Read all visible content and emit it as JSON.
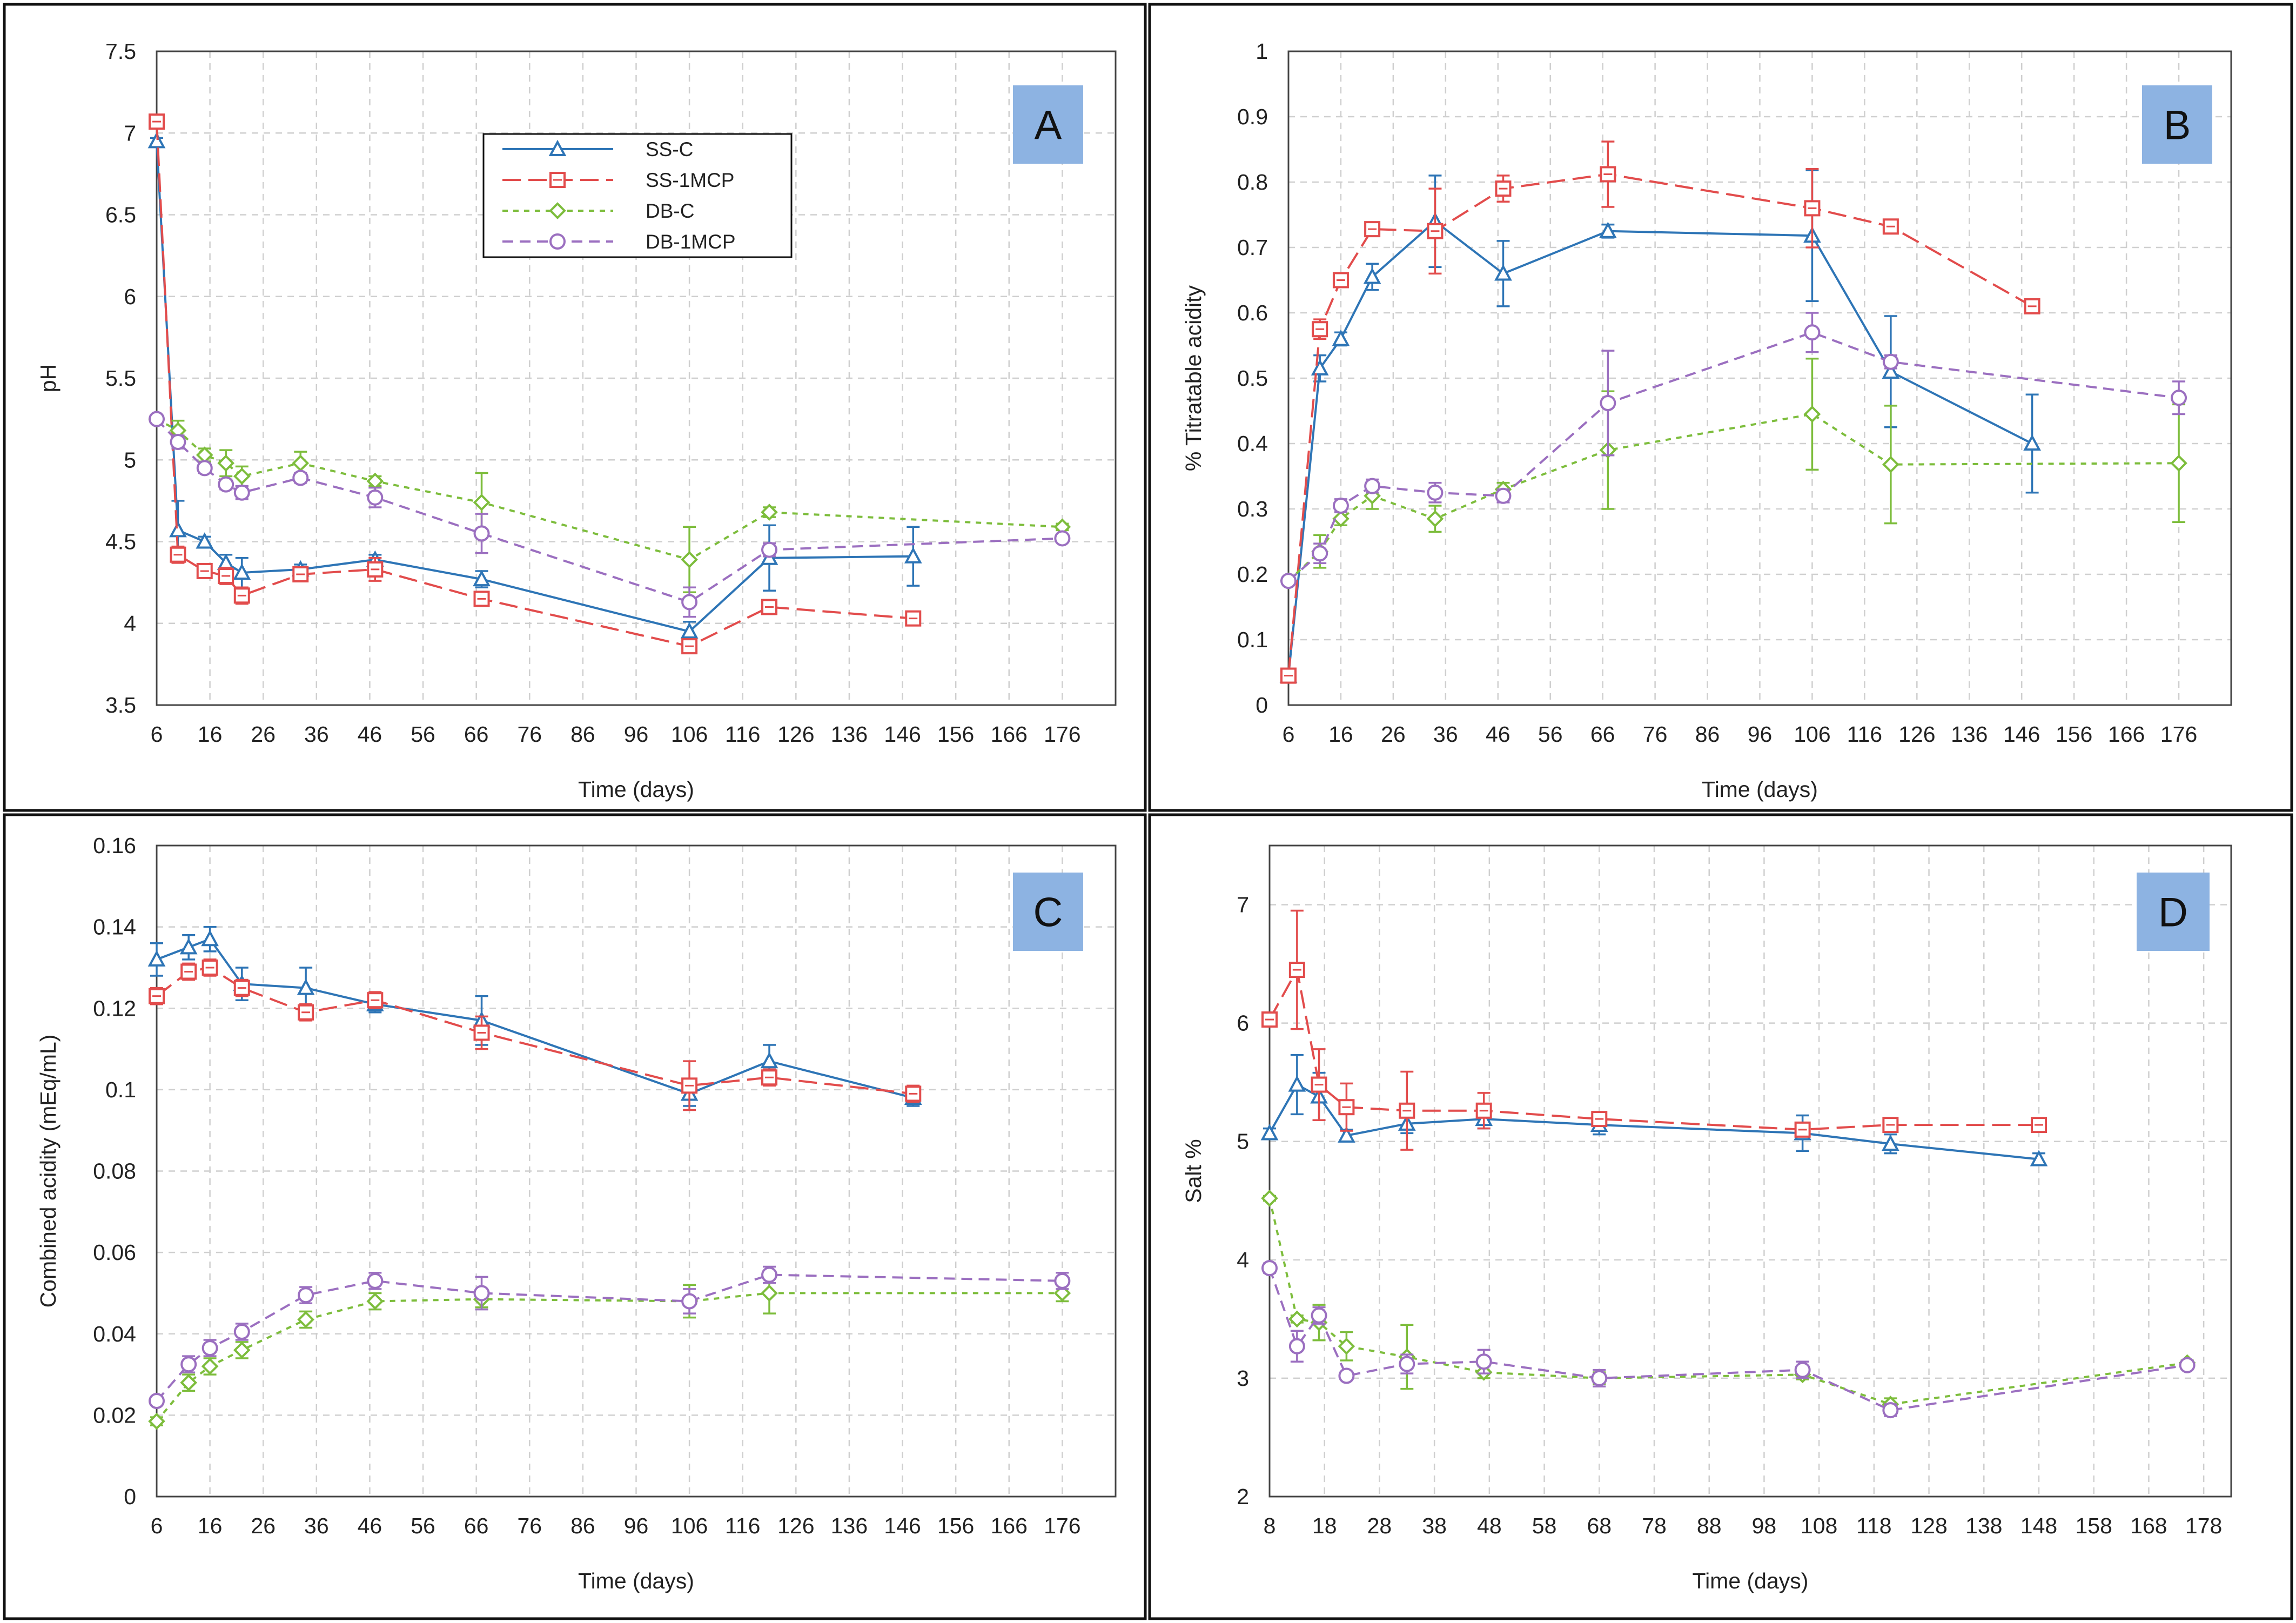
{
  "colors": {
    "SS-C": "#2e75b6",
    "SS-1MCP": "#e24c4c",
    "DB-C": "#7dbd3c",
    "DB-1MCP": "#9b6fc0",
    "letter_box": "#8db3e2"
  },
  "legend_labels": [
    "SS-C",
    "SS-1MCP",
    "DB-C",
    "DB-1MCP"
  ],
  "chart_data": [
    {
      "panel": "A",
      "type": "line",
      "xlabel": "Time (days)",
      "ylabel": "pH",
      "xlim": [
        6,
        186
      ],
      "ylim": [
        3.5,
        7.5
      ],
      "xticks": [
        "6",
        "16",
        "26",
        "36",
        "46",
        "56",
        "66",
        "76",
        "86",
        "96",
        "106",
        "116",
        "126",
        "136",
        "146",
        "156",
        "166",
        "176"
      ],
      "yticks": [
        "3.5",
        "4",
        "4.5",
        "5",
        "5.5",
        "6",
        "6.5",
        "7",
        "7.5"
      ],
      "legend_position": "top-center",
      "series": [
        {
          "name": "SS-C",
          "marker": "triangle",
          "dash": "solid",
          "x": [
            6,
            10,
            15,
            19,
            22,
            33,
            47,
            67,
            106,
            121,
            148
          ],
          "y": [
            6.95,
            4.57,
            4.5,
            4.37,
            4.31,
            4.33,
            4.39,
            4.27,
            3.95,
            4.4,
            4.41
          ],
          "err": [
            0.02,
            0.18,
            0.03,
            0.05,
            0.09,
            0.03,
            0.03,
            0.05,
            0.06,
            0.2,
            0.18
          ]
        },
        {
          "name": "SS-1MCP",
          "marker": "square",
          "dash": "long",
          "x": [
            6,
            10,
            15,
            19,
            22,
            33,
            47,
            67,
            106,
            121,
            148
          ],
          "y": [
            7.07,
            4.42,
            4.32,
            4.29,
            4.17,
            4.3,
            4.33,
            4.15,
            3.86,
            4.1,
            4.03
          ],
          "err": [
            0.02,
            0.05,
            0.03,
            0.05,
            0.05,
            0.03,
            0.07,
            0.03,
            0.03,
            0.03,
            0.02
          ]
        },
        {
          "name": "DB-C",
          "marker": "diamond",
          "dash": "short",
          "x": [
            6,
            10,
            15,
            19,
            22,
            33,
            47,
            67,
            106,
            121,
            176
          ],
          "y": [
            5.25,
            5.18,
            5.03,
            4.98,
            4.9,
            4.98,
            4.87,
            4.74,
            4.39,
            4.68,
            4.59
          ],
          "err": [
            0.02,
            0.06,
            0.04,
            0.08,
            0.06,
            0.07,
            0.03,
            0.18,
            0.2,
            0.03,
            0.02
          ]
        },
        {
          "name": "DB-1MCP",
          "marker": "circle",
          "dash": "medium",
          "x": [
            6,
            10,
            15,
            19,
            22,
            33,
            47,
            67,
            106,
            121,
            176
          ],
          "y": [
            5.25,
            5.11,
            4.95,
            4.85,
            4.8,
            4.89,
            4.77,
            4.55,
            4.13,
            4.45,
            4.52
          ],
          "err": [
            0.02,
            0.04,
            0.03,
            0.03,
            0.04,
            0.03,
            0.06,
            0.12,
            0.09,
            0.04,
            0.02
          ]
        }
      ]
    },
    {
      "panel": "B",
      "type": "line",
      "xlabel": "Time (days)",
      "ylabel": "% Titratable acidity",
      "xlim": [
        6,
        186
      ],
      "ylim": [
        0,
        1
      ],
      "xticks": [
        "6",
        "16",
        "26",
        "36",
        "46",
        "56",
        "66",
        "76",
        "86",
        "96",
        "106",
        "116",
        "126",
        "136",
        "146",
        "156",
        "166",
        "176"
      ],
      "yticks": [
        "0",
        "0.1",
        "0.2",
        "0.3",
        "0.4",
        "0.5",
        "0.6",
        "0.7",
        "0.8",
        "0.9",
        "1"
      ],
      "series": [
        {
          "name": "SS-C",
          "marker": "triangle",
          "dash": "solid",
          "x": [
            6,
            12,
            16,
            22,
            34,
            47,
            67,
            106,
            121,
            148
          ],
          "y": [
            0.045,
            0.515,
            0.56,
            0.655,
            0.74,
            0.66,
            0.725,
            0.718,
            0.51,
            0.4
          ],
          "err": [
            0.005,
            0.02,
            0.01,
            0.02,
            0.07,
            0.05,
            0.01,
            0.1,
            0.085,
            0.075
          ]
        },
        {
          "name": "SS-1MCP",
          "marker": "square",
          "dash": "long",
          "x": [
            6,
            12,
            16,
            22,
            34,
            47,
            67,
            106,
            121,
            148
          ],
          "y": [
            0.045,
            0.575,
            0.65,
            0.728,
            0.725,
            0.79,
            0.812,
            0.76,
            0.732,
            0.61
          ],
          "err": [
            0.005,
            0.015,
            0.01,
            0.008,
            0.065,
            0.02,
            0.05,
            0.06,
            0.01,
            0.008
          ]
        },
        {
          "name": "DB-C",
          "marker": "diamond",
          "dash": "short",
          "x": [
            6,
            12,
            16,
            22,
            34,
            47,
            67,
            106,
            121,
            176
          ],
          "y": [
            0.19,
            0.235,
            0.285,
            0.32,
            0.285,
            0.33,
            0.39,
            0.445,
            0.368,
            0.37
          ],
          "err": [
            0.005,
            0.025,
            0.01,
            0.02,
            0.02,
            0.01,
            0.09,
            0.085,
            0.09,
            0.09
          ]
        },
        {
          "name": "DB-1MCP",
          "marker": "circle",
          "dash": "medium",
          "x": [
            6,
            12,
            16,
            22,
            34,
            47,
            67,
            106,
            121,
            176
          ],
          "y": [
            0.19,
            0.232,
            0.305,
            0.335,
            0.325,
            0.32,
            0.462,
            0.57,
            0.525,
            0.47
          ],
          "err": [
            0.005,
            0.015,
            0.01,
            0.01,
            0.015,
            0.01,
            0.08,
            0.03,
            0.01,
            0.025
          ]
        }
      ]
    },
    {
      "panel": "C",
      "type": "line",
      "xlabel": "Time (days)",
      "ylabel": "Combined acidity (mEq/mL)",
      "xlim": [
        6,
        186
      ],
      "ylim": [
        0,
        0.16
      ],
      "xticks": [
        "6",
        "16",
        "26",
        "36",
        "46",
        "56",
        "66",
        "76",
        "86",
        "96",
        "106",
        "116",
        "126",
        "136",
        "146",
        "156",
        "166",
        "176"
      ],
      "yticks": [
        "0",
        "0.02",
        "0.04",
        "0.06",
        "0.08",
        "0.1",
        "0.12",
        "0.14",
        "0.16"
      ],
      "series": [
        {
          "name": "SS-C",
          "marker": "triangle",
          "dash": "solid",
          "x": [
            6,
            12,
            16,
            22,
            34,
            47,
            67,
            106,
            121,
            148
          ],
          "y": [
            0.132,
            0.135,
            0.137,
            0.126,
            0.125,
            0.121,
            0.117,
            0.099,
            0.107,
            0.098
          ],
          "err": [
            0.004,
            0.003,
            0.003,
            0.004,
            0.005,
            0.002,
            0.006,
            0.003,
            0.004,
            0.002
          ]
        },
        {
          "name": "SS-1MCP",
          "marker": "square",
          "dash": "long",
          "x": [
            6,
            12,
            16,
            22,
            34,
            47,
            67,
            106,
            121,
            148
          ],
          "y": [
            0.123,
            0.129,
            0.13,
            0.125,
            0.119,
            0.122,
            0.114,
            0.101,
            0.103,
            0.099
          ],
          "err": [
            0.002,
            0.002,
            0.002,
            0.002,
            0.002,
            0.002,
            0.004,
            0.006,
            0.002,
            0.002
          ]
        },
        {
          "name": "DB-C",
          "marker": "diamond",
          "dash": "short",
          "x": [
            6,
            12,
            16,
            22,
            34,
            47,
            67,
            106,
            121,
            176
          ],
          "y": [
            0.0185,
            0.028,
            0.032,
            0.036,
            0.0435,
            0.048,
            0.0485,
            0.048,
            0.05,
            0.05
          ],
          "err": [
            0.001,
            0.002,
            0.002,
            0.002,
            0.002,
            0.002,
            0.002,
            0.004,
            0.005,
            0.002
          ]
        },
        {
          "name": "DB-1MCP",
          "marker": "circle",
          "dash": "medium",
          "x": [
            6,
            12,
            16,
            22,
            34,
            47,
            67,
            106,
            121,
            176
          ],
          "y": [
            0.0235,
            0.0325,
            0.0365,
            0.0405,
            0.0495,
            0.053,
            0.05,
            0.048,
            0.0545,
            0.053
          ],
          "err": [
            0.001,
            0.002,
            0.002,
            0.002,
            0.002,
            0.002,
            0.004,
            0.003,
            0.002,
            0.002
          ]
        }
      ]
    },
    {
      "panel": "D",
      "type": "line",
      "xlabel": "Time (days)",
      "ylabel": "Salt %",
      "xlim": [
        8,
        183
      ],
      "ylim": [
        2,
        7.5
      ],
      "xticks": [
        "8",
        "18",
        "28",
        "38",
        "48",
        "58",
        "68",
        "78",
        "88",
        "98",
        "108",
        "118",
        "128",
        "138",
        "148",
        "158",
        "168",
        "178"
      ],
      "yticks": [
        "2",
        "3",
        "4",
        "5",
        "6",
        "7"
      ],
      "series": [
        {
          "name": "SS-C",
          "marker": "triangle",
          "dash": "solid",
          "x": [
            8,
            13,
            17,
            22,
            33,
            47,
            68,
            105,
            121,
            148
          ],
          "y": [
            5.07,
            5.48,
            5.38,
            5.05,
            5.15,
            5.19,
            5.14,
            5.07,
            4.98,
            4.85
          ],
          "err": [
            0.04,
            0.25,
            0.2,
            0.05,
            0.08,
            0.08,
            0.08,
            0.15,
            0.08,
            0.05
          ]
        },
        {
          "name": "SS-1MCP",
          "marker": "square",
          "dash": "long",
          "x": [
            8,
            13,
            17,
            22,
            33,
            47,
            68,
            105,
            121,
            148
          ],
          "y": [
            6.03,
            6.45,
            5.48,
            5.29,
            5.26,
            5.26,
            5.19,
            5.1,
            5.14,
            5.14
          ],
          "err": [
            0.03,
            0.5,
            0.3,
            0.2,
            0.33,
            0.15,
            0.04,
            0.04,
            0.04,
            0.04
          ]
        },
        {
          "name": "DB-C",
          "marker": "diamond",
          "dash": "short",
          "x": [
            8,
            13,
            17,
            22,
            33,
            47,
            68,
            105,
            121,
            175
          ],
          "y": [
            4.52,
            3.5,
            3.47,
            3.27,
            3.18,
            3.05,
            3.0,
            3.03,
            2.78,
            3.13
          ],
          "err": [
            0.02,
            0.03,
            0.15,
            0.12,
            0.27,
            0.05,
            0.05,
            0.04,
            0.05,
            0.02
          ]
        },
        {
          "name": "DB-1MCP",
          "marker": "circle",
          "dash": "medium",
          "x": [
            8,
            13,
            17,
            22,
            33,
            47,
            68,
            105,
            121,
            175
          ],
          "y": [
            3.93,
            3.27,
            3.53,
            3.02,
            3.12,
            3.14,
            3.0,
            3.07,
            2.73,
            3.11
          ],
          "err": [
            0.04,
            0.13,
            0.07,
            0.03,
            0.08,
            0.1,
            0.07,
            0.07,
            0.05,
            0.03
          ]
        }
      ]
    }
  ]
}
